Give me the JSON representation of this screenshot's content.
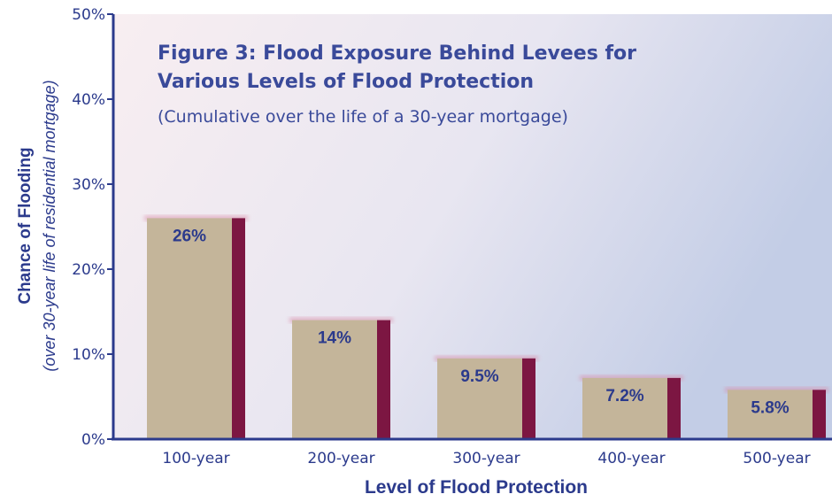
{
  "chart_data": {
    "type": "bar",
    "title_line1": "Figure 3: Flood Exposure Behind Levees for",
    "title_line2": "Various Levels of Flood Protection",
    "subtitle": "(Cumulative over the life of a 30-year mortgage)",
    "xlabel": "Level of Flood Protection",
    "ylabel": "Chance of Flooding",
    "ylabel_sub": "(over 30-year life of residential mortgage)",
    "categories": [
      "100-year",
      "200-year",
      "300-year",
      "400-year",
      "500-year"
    ],
    "values": [
      26,
      14,
      9.5,
      7.2,
      5.8
    ],
    "data_labels": [
      "26%",
      "14%",
      "9.5%",
      "7.2%",
      "5.8%"
    ],
    "ylim": [
      0,
      50
    ],
    "yticks": [
      "0%",
      "10%",
      "20%",
      "30%",
      "40%",
      "50%"
    ],
    "grid": false,
    "colors": {
      "bar_face": "#c4b59a",
      "bar_side": "#7c1642",
      "axis": "#2b3a8c",
      "text": "#2b3a8c"
    }
  }
}
